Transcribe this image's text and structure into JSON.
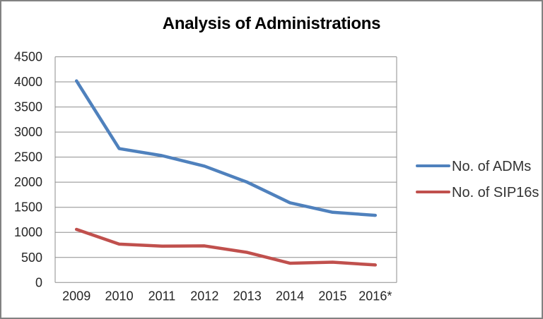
{
  "window": {
    "background_color": "#ffffff",
    "border_color": "#828282"
  },
  "chart_data": {
    "type": "line",
    "title": "Analysis of Administrations",
    "categories": [
      "2009",
      "2010",
      "2011",
      "2012",
      "2013",
      "2014",
      "2015",
      "2016*"
    ],
    "series": [
      {
        "name": "No. of ADMs",
        "color": "#4F81BD",
        "values": [
          4020,
          2670,
          2530,
          2320,
          2000,
          1590,
          1400,
          1340
        ]
      },
      {
        "name": "No. of SIP16s",
        "color": "#C0504D",
        "values": [
          1060,
          765,
          725,
          730,
          600,
          385,
          405,
          350
        ]
      }
    ],
    "xlabel": "",
    "ylabel": "",
    "ylim": [
      0,
      4500
    ],
    "ytick_step": 500,
    "ytick_labels": [
      "0",
      "500",
      "1000",
      "1500",
      "2000",
      "2500",
      "3000",
      "3500",
      "4000",
      "4500"
    ],
    "grid": true,
    "gridline_color": "#8E8E8E",
    "axis_text_color": "#262626",
    "legend_position": "right",
    "legend_text_color": "#333333"
  }
}
